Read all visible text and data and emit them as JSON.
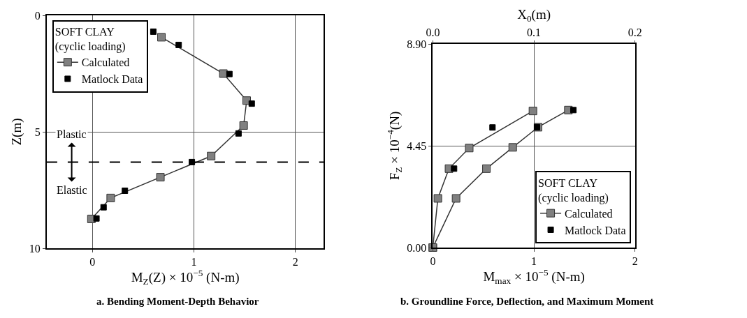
{
  "chart_data": [
    {
      "type": "line",
      "title": "a. Bending Moment-Depth Behavior",
      "xlabel": "M$_{Z}$(Z) × 10$^{−5}$ (N-m)",
      "ylabel": "Z(m)",
      "legend_title": "SOFT CLAY\n(cyclic loading)",
      "xlim": [
        -0.45,
        2.28
      ],
      "xticks": [
        0,
        1,
        2
      ],
      "ylim": [
        10,
        0
      ],
      "yticks": [
        0,
        5,
        10
      ],
      "grid": true,
      "legend": "top left",
      "marker": "square",
      "series": [
        {
          "name": "Calculated",
          "color": "#808080",
          "x": [
            0.68,
            1.29,
            1.52,
            1.49,
            1.17,
            0.67,
            0.18,
            -0.01
          ],
          "values": [
            0.94,
            2.5,
            3.66,
            4.73,
            6.04,
            6.95,
            7.84,
            8.74
          ]
        },
        {
          "name": "Matlock Data",
          "type": "scatter",
          "color": "#000000",
          "x": [
            0.6,
            0.85,
            1.35,
            1.57,
            1.44,
            0.98,
            0.32,
            0.11,
            0.04
          ],
          "values": [
            0.7,
            1.27,
            2.52,
            3.79,
            5.07,
            6.3,
            7.53,
            8.24,
            8.72
          ]
        }
      ],
      "ref_lines": [
        {
          "axis": "y",
          "value": 6.3,
          "line_style": "dashed",
          "color": "#000000"
        }
      ],
      "annotations": [
        "Plastic",
        "Elastic"
      ]
    },
    {
      "type": "line",
      "title": "b. Groundline Force, Deflection, and Maximum Moment",
      "xlabel": "M$_{max}$ × 10$^{−5}$ (N-m)",
      "x2label": "X$_{0}$(m)",
      "ylabel": "F$_{Z}$ × 10$^{−4}$(N)",
      "legend_title": "SOFT CLAY\n(cyclic loading)",
      "xlim": [
        0,
        2
      ],
      "xticks": [
        0,
        1,
        2
      ],
      "x2lim": [
        0,
        0.2
      ],
      "x2ticks": [
        {
          "value": 0,
          "label": "0.0"
        },
        {
          "value": 0.1,
          "label": "0.1"
        },
        {
          "value": 0.2,
          "label": "0.2"
        }
      ],
      "ylim": [
        0,
        8.9
      ],
      "yticks": [
        {
          "value": 0,
          "label": "0.00"
        },
        {
          "value": 4.45,
          "label": "4.45"
        },
        {
          "value": 8.9,
          "label": "8.90"
        }
      ],
      "grid": true,
      "legend": "bottom right",
      "marker": "square",
      "series": [
        {
          "name": "Calculated",
          "color": "#808080",
          "x": [
            0,
            0.23,
            0.53,
            0.79,
            1.04,
            1.34
          ],
          "values": [
            0,
            2.15,
            3.45,
            4.38,
            5.26,
            6.01
          ]
        },
        {
          "color": "#808080",
          "axis": "x2",
          "x": [
            0,
            0.005,
            0.016,
            0.036,
            0.099
          ],
          "values": [
            0,
            2.15,
            3.45,
            4.35,
            5.97
          ]
        },
        {
          "name": "Matlock Data",
          "type": "scatter",
          "color": "#000000",
          "x": [
            1.03,
            1.39
          ],
          "values": [
            5.26,
            6.01
          ]
        },
        {
          "type": "scatter",
          "color": "#000000",
          "axis": "x2",
          "x": [
            0.021,
            0.059
          ],
          "values": [
            3.45,
            5.25
          ]
        }
      ]
    }
  ]
}
